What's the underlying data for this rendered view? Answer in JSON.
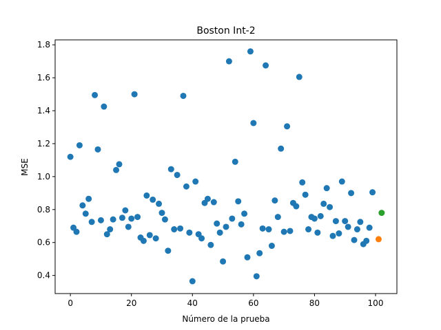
{
  "chart_data": {
    "type": "scatter",
    "title": "Boston Int-2",
    "xlabel": "Número de la prueba",
    "ylabel": "MSE",
    "xlim": [
      -5,
      107
    ],
    "ylim": [
      0.29,
      1.83
    ],
    "xticks": [
      0,
      20,
      40,
      60,
      80,
      100
    ],
    "yticks": [
      0.4,
      0.6,
      0.8,
      1.0,
      1.2,
      1.4,
      1.6,
      1.8
    ],
    "ytick_labels": [
      "0.4",
      "0.6",
      "0.8",
      "1.0",
      "1.2",
      "1.4",
      "1.6",
      "1.8"
    ],
    "grid": false,
    "series": [
      {
        "color": "#1f77b4",
        "x": [
          0,
          1,
          2,
          3,
          4,
          5,
          6,
          7,
          8,
          9,
          10,
          11,
          12,
          13,
          14,
          15,
          16,
          17,
          18,
          19,
          20,
          21,
          22,
          23,
          24,
          25,
          26,
          27,
          28,
          29,
          30,
          31,
          32,
          33,
          34,
          35,
          36,
          37,
          38,
          39,
          40,
          41,
          42,
          43,
          44,
          45,
          46,
          47,
          48,
          49,
          50,
          51,
          52,
          53,
          54,
          55,
          56,
          57,
          58,
          59,
          60,
          61,
          62,
          63,
          64,
          65,
          66,
          67,
          68,
          69,
          70,
          71,
          72,
          73,
          74,
          75,
          76,
          77,
          78,
          79,
          80,
          81,
          82,
          83,
          84,
          85,
          86,
          87,
          88,
          89,
          90,
          91,
          92,
          93,
          94,
          95,
          96,
          97,
          98,
          99
        ],
        "y": [
          1.12,
          0.69,
          0.665,
          1.19,
          0.825,
          0.775,
          0.865,
          0.725,
          1.495,
          1.165,
          0.735,
          1.425,
          0.65,
          0.68,
          0.74,
          1.04,
          1.075,
          0.75,
          0.795,
          0.695,
          0.745,
          1.5,
          0.755,
          0.63,
          0.61,
          0.885,
          0.645,
          0.86,
          0.625,
          0.835,
          0.78,
          0.74,
          0.55,
          1.045,
          0.68,
          1.01,
          0.685,
          1.49,
          0.94,
          0.66,
          0.365,
          0.97,
          0.65,
          0.625,
          0.84,
          0.865,
          0.585,
          0.845,
          0.715,
          0.66,
          0.485,
          0.695,
          1.7,
          0.745,
          1.09,
          0.85,
          0.71,
          0.775,
          0.51,
          1.76,
          1.325,
          0.395,
          0.535,
          0.685,
          1.675,
          0.68,
          0.58,
          0.855,
          0.755,
          1.17,
          0.665,
          1.305,
          0.67,
          0.84,
          0.82,
          1.605,
          0.965,
          0.89,
          0.68,
          0.755,
          0.745,
          0.66,
          0.76,
          0.835,
          0.93,
          0.815,
          0.64,
          0.73,
          0.655,
          0.97,
          0.73,
          0.695,
          0.9,
          0.615,
          0.68,
          0.725,
          0.59,
          0.61,
          0.69,
          0.905
        ]
      },
      {
        "color": "#ff7f0e",
        "x": [
          101
        ],
        "y": [
          0.62
        ]
      },
      {
        "color": "#2ca02c",
        "x": [
          102
        ],
        "y": [
          0.78
        ]
      }
    ]
  }
}
